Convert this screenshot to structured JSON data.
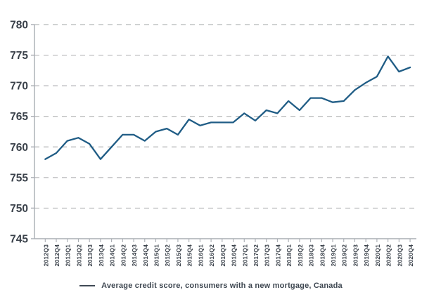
{
  "page": {
    "background": "#ffffff"
  },
  "legend": {
    "label": "Average credit score, consumers with a new mortgage, Canada"
  },
  "chart_data": {
    "type": "line",
    "title": "",
    "xlabel": "",
    "ylabel": "",
    "categories": [
      "2012Q3",
      "2012Q4",
      "2013Q1",
      "2013Q2",
      "2013Q3",
      "2013Q4",
      "2014Q1",
      "2014Q2",
      "2014Q3",
      "2014Q4",
      "2015Q1",
      "2015Q2",
      "2015Q3",
      "2015Q4",
      "2016Q1",
      "2016Q2",
      "2016Q3",
      "2016Q4",
      "2017Q1",
      "2017Q2",
      "2017Q3",
      "2017Q4",
      "2018Q1",
      "2018Q2",
      "2018Q3",
      "2018Q4",
      "2019Q1",
      "2019Q2",
      "2019Q3",
      "2019Q4",
      "2020Q1",
      "2020Q2",
      "2020Q3",
      "2020Q4"
    ],
    "series": [
      {
        "name": "Average credit score, consumers with a new mortgage, Canada",
        "color": "#1f5c85",
        "values": [
          758,
          759,
          761,
          761.5,
          760.5,
          758,
          760,
          762,
          762,
          761,
          762.5,
          763,
          762,
          764.5,
          763.5,
          764,
          764,
          764,
          765.5,
          764.3,
          766,
          765.5,
          767.5,
          766,
          768,
          768,
          767.3,
          767.5,
          769.3,
          770.5,
          771.5,
          774.8,
          772.3,
          773
        ]
      }
    ],
    "ylim": [
      745,
      780
    ],
    "yticks": [
      780,
      775,
      770,
      765,
      760,
      755,
      750,
      745
    ],
    "grid": {
      "horizontal_dashed": true,
      "gridline_color": "#b5b6b8",
      "axis_color": "#a9adb3",
      "tick_label_color": "#3a414a"
    },
    "legend_position": "bottom"
  }
}
